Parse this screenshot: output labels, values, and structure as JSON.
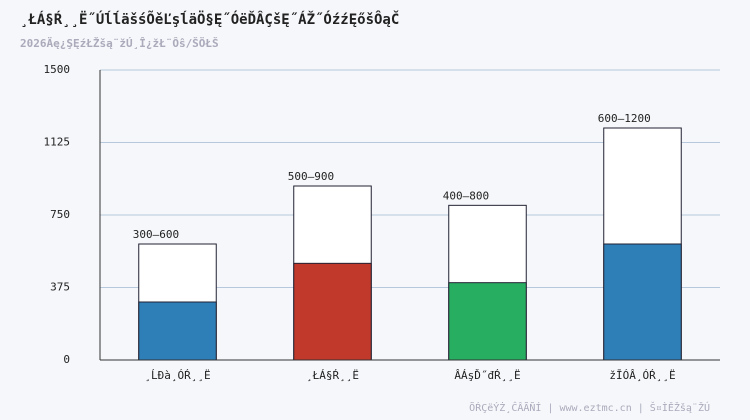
{
  "chart_data": {
    "type": "range-bar",
    "title": "¸ŁÁ§Ŕ¸¸Ë˝ÚĺĺäšśÕěĽşĺäÖ§Ę˝ÓëĎÂÇšĘ˝ÁŽ˝ÓźźĘőšÔąČ",
    "subtitle": "2026Äę¿ŞĘźŁŽšą¨žÚ¸Î¿žŁ¨Ôŝ/ŠÖŁŠ",
    "footer": "ÕŔÇëÝŻ¸ĈÂÃÑÍ | www.eztmc.cn | Š¤ÌĚŽšą¨ŽÚ",
    "categories": [
      "¸ĹĐà¸ÓŔ¸¸Ë",
      "¸ŁÁ§Ŕ¸¸Ë",
      "ÂÁşĎ˝đŔ¸¸Ë",
      "žĪÓÂ¸ÓŔ¸¸Ë"
    ],
    "series": [
      {
        "colors": [
          "#2e7fb8",
          "#c0392b",
          "#27ae60",
          "#2e7fb8"
        ],
        "values": [
          300,
          500,
          400,
          600
        ]
      },
      {
        "color": "#ffffff",
        "values": [
          600,
          900,
          800,
          1200
        ],
        "value_labels": [
          "300–600",
          "500–900",
          "400–800",
          "600–1200"
        ]
      }
    ],
    "ylim": [
      0,
      1500
    ],
    "yticks": [
      0,
      375,
      750,
      1125,
      1500
    ],
    "grid": true
  }
}
